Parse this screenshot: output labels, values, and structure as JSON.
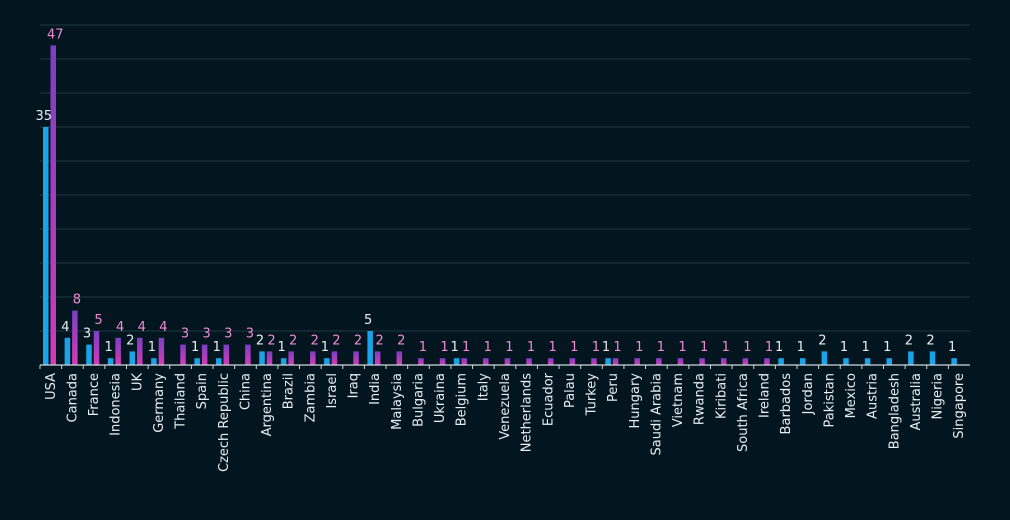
{
  "chart_data": {
    "type": "bar",
    "title": "",
    "xlabel": "",
    "ylabel": "",
    "ylim": [
      0,
      50
    ],
    "grid": true,
    "legend": "none",
    "categories": [
      "USA",
      "Canada",
      "France",
      "Indonesia",
      "UK",
      "Germany",
      "Thailand",
      "Spain",
      "Czech Republic",
      "China",
      "Argentina",
      "Brazil",
      "Zambia",
      "Israel",
      "Iraq",
      "India",
      "Malaysia",
      "Bulgaria",
      "Ukraina",
      "Belgium",
      "Italy",
      "Venezuela",
      "Netherlands",
      "Ecuador",
      "Palau",
      "Turkey",
      "Peru",
      "Hungary",
      "Saudi Arabia",
      "Vietnam",
      "Rwanda",
      "Kiribati",
      "South Africa",
      "Ireland",
      "Barbados",
      "Jordan",
      "Pakistan",
      "Mexico",
      "Austria",
      "Bangladesh",
      "Australia",
      "Nigeria",
      "Singapore"
    ],
    "series": [
      {
        "values": [
          35,
          4,
          3,
          1,
          2,
          1,
          null,
          1,
          1,
          null,
          2,
          1,
          null,
          1,
          null,
          5,
          null,
          null,
          null,
          1,
          null,
          null,
          null,
          null,
          null,
          null,
          1,
          null,
          null,
          null,
          null,
          null,
          null,
          null,
          1,
          1,
          2,
          1,
          1,
          1,
          2,
          2,
          1
        ],
        "color": "#1aa3e8"
      },
      {
        "values": [
          47,
          8,
          5,
          4,
          4,
          4,
          3,
          3,
          3,
          3,
          2,
          2,
          2,
          2,
          2,
          2,
          2,
          1,
          1,
          1,
          1,
          1,
          1,
          1,
          1,
          1,
          1,
          1,
          1,
          1,
          1,
          1,
          1,
          1,
          null,
          null,
          null,
          null,
          null,
          null,
          null,
          null,
          null
        ],
        "color": "#d63ab8",
        "color_top": "#7b3fc4"
      }
    ],
    "value_label_colors": {
      "series_1": "#e6eef2",
      "series_2": "#f08ad4"
    }
  }
}
